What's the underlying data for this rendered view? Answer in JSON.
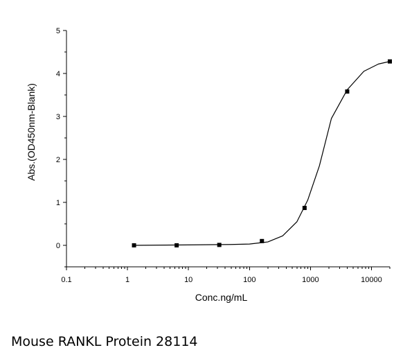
{
  "caption": "Mouse RANKL Protein 28114",
  "chart_data": {
    "type": "scatter",
    "title": "",
    "xlabel": "Conc.ng/mL",
    "ylabel": "Abs.(OD450nm-Blank)",
    "xscale": "log",
    "xlim": [
      0.1,
      20000
    ],
    "ylim": [
      -0.5,
      5
    ],
    "x_ticks": [
      "0.1",
      "1",
      "10",
      "100",
      "1000",
      "10000"
    ],
    "y_ticks": [
      "0",
      "1",
      "2",
      "3",
      "4",
      "5"
    ],
    "grid": false,
    "legend": "none",
    "series": [
      {
        "points": [
          {
            "x": 1.28,
            "y": 0.0
          },
          {
            "x": 6.4,
            "y": 0.0
          },
          {
            "x": 32,
            "y": 0.01
          },
          {
            "x": 160,
            "y": 0.1
          },
          {
            "x": 800,
            "y": 0.87
          },
          {
            "x": 4000,
            "y": 3.58
          },
          {
            "x": 20000,
            "y": 4.28
          }
        ],
        "fit_curve": [
          {
            "x": 1.28,
            "y": 0.0
          },
          {
            "x": 10,
            "y": 0.01
          },
          {
            "x": 50,
            "y": 0.02
          },
          {
            "x": 100,
            "y": 0.03
          },
          {
            "x": 200,
            "y": 0.08
          },
          {
            "x": 350,
            "y": 0.22
          },
          {
            "x": 600,
            "y": 0.55
          },
          {
            "x": 900,
            "y": 1.05
          },
          {
            "x": 1400,
            "y": 1.85
          },
          {
            "x": 2200,
            "y": 2.95
          },
          {
            "x": 4000,
            "y": 3.62
          },
          {
            "x": 7500,
            "y": 4.05
          },
          {
            "x": 13000,
            "y": 4.22
          },
          {
            "x": 20000,
            "y": 4.28
          }
        ]
      }
    ]
  }
}
